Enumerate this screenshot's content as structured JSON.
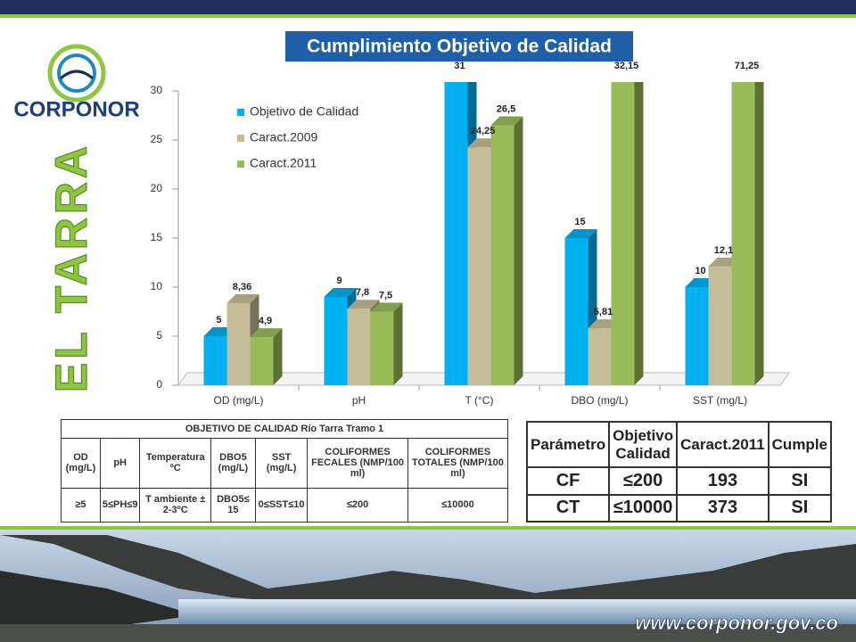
{
  "slide": {
    "logo_text": "CORPONOR",
    "side_title": "EL TARRA",
    "website": "www.corponor.gov.co"
  },
  "chart_data": {
    "type": "bar3d",
    "title": "Cumplimiento Objetivo de Calidad",
    "categories": [
      "OD (mg/L)",
      "pH",
      "T (°C)",
      "DBO (mg/L)",
      "SST (mg/L)"
    ],
    "series": [
      {
        "name": "Objetivo de Calidad",
        "color": "#00b0f0",
        "values": [
          5,
          9,
          31,
          15,
          10
        ],
        "value_labels": [
          "5",
          "9",
          "31",
          "15",
          "10"
        ]
      },
      {
        "name": "Caract.2009",
        "color": "#c4bd97",
        "values": [
          8.36,
          7.8,
          24.25,
          5.81,
          12.1
        ],
        "value_labels": [
          "8,36",
          "7,8",
          "24,25",
          "5,81",
          "12,1"
        ]
      },
      {
        "name": "Caract.2011",
        "color": "#9bbb59",
        "values": [
          4.9,
          7.5,
          26.5,
          32.15,
          71.25
        ],
        "value_labels": [
          "4,9",
          "7,5",
          "26,5",
          "32,15",
          "71,25"
        ]
      }
    ],
    "ylim": [
      0,
      30
    ],
    "yticks": [
      0,
      5,
      10,
      15,
      20,
      25,
      30
    ],
    "legend": "top-left"
  },
  "table_left": {
    "title": "OBJETIVO DE CALIDAD Río Tarra Tramo 1",
    "headers": [
      "OD (mg/L)",
      "pH",
      "Temperatura ºC",
      "DBO5 (mg/L)",
      "SST (mg/L)",
      "COLIFORMES FECALES (NMP/100 ml)",
      "COLIFORMES TOTALES (NMP/100 ml)"
    ],
    "rows": [
      [
        "≥5",
        "5≤PH≤9",
        "T ambiente ± 2-3ºC",
        "DBO5≤ 15",
        "0≤SST≤10",
        "≤200",
        "≤10000"
      ]
    ]
  },
  "table_right": {
    "headers": [
      "Parámetro",
      "Objetivo Calidad",
      "Caract.2011",
      "Cumple"
    ],
    "rows": [
      [
        "CF",
        "≤200",
        "193",
        "SI"
      ],
      [
        "CT",
        "≤10000",
        "373",
        "SI"
      ]
    ]
  }
}
